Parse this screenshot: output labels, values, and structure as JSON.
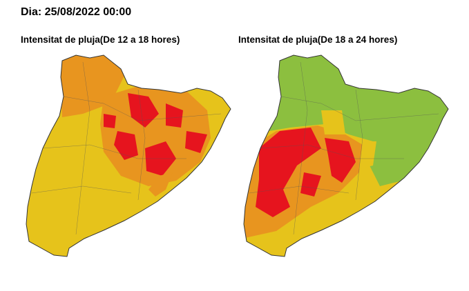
{
  "header": {
    "date": "Dia: 25/08/2022 00:00"
  },
  "maps": [
    {
      "title": "Intensitat de pluja(De 12 a 18 hores)"
    },
    {
      "title": "Intensitat de pluja(De 18 a 24 hores)"
    }
  ]
}
